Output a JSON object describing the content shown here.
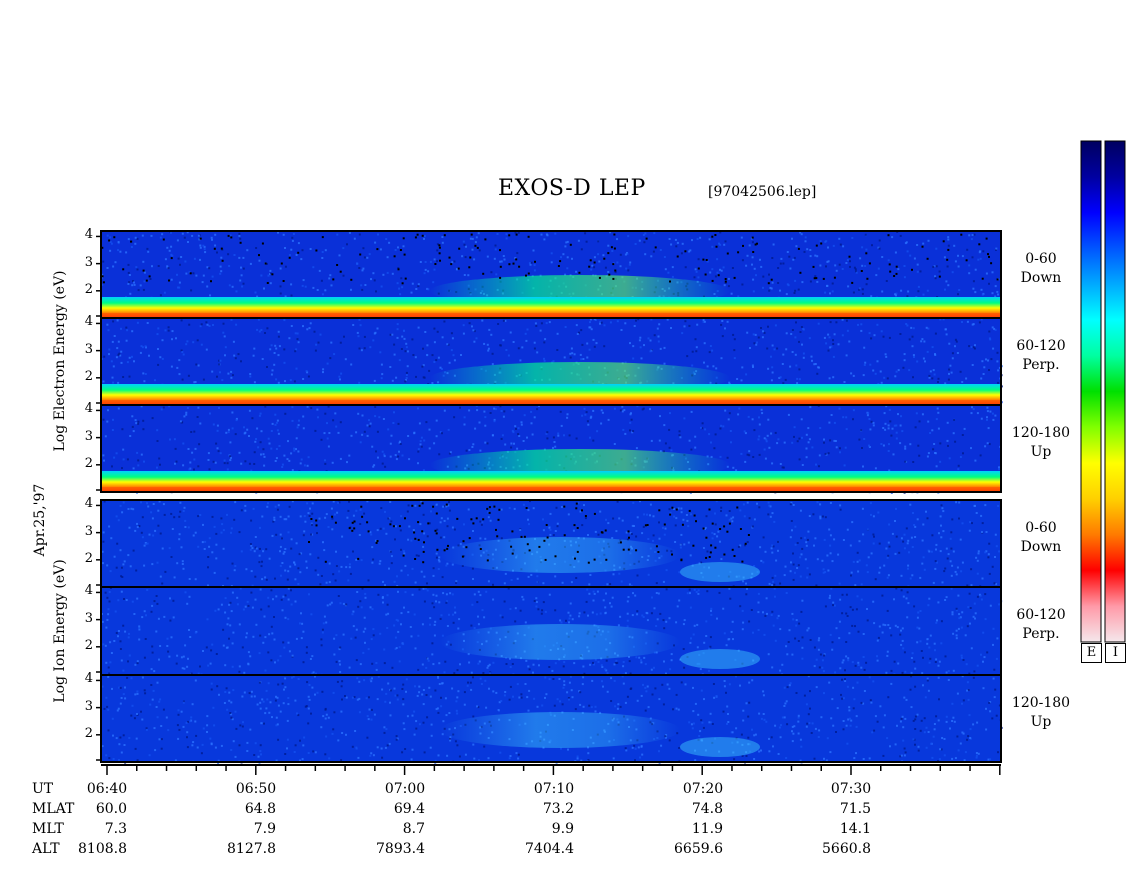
{
  "header": {
    "title": "EXOS-D LEP",
    "filename": "[97042506.lep]"
  },
  "date_label": "Apr.25,'97",
  "electron_axis": {
    "words": [
      "Log",
      "Electron",
      "Energy",
      "(eV)"
    ]
  },
  "ion_axis": {
    "words": [
      "Log",
      "Ion",
      "Energy",
      "(eV)"
    ]
  },
  "colorbar": {
    "labels": [
      "E",
      "I"
    ],
    "colors": [
      "#f5e8ec",
      "#ff9aa8",
      "#ff0000",
      "#ff7a00",
      "#ffd000",
      "#ffff00",
      "#80ff00",
      "#00e000",
      "#00ffa0",
      "#00ffff",
      "#00aaff",
      "#0055ff",
      "#0000ff",
      "#0000a0",
      "#000060"
    ]
  },
  "orbit_table": {
    "rows": [
      {
        "label": "UT",
        "values": [
          "06:40",
          "06:50",
          "07:00",
          "07:10",
          "07:20",
          "07:30"
        ]
      },
      {
        "label": "MLAT",
        "values": [
          "60.0",
          "64.8",
          "69.4",
          "73.2",
          "74.8",
          "71.5"
        ]
      },
      {
        "label": "MLT",
        "values": [
          "7.3",
          "7.9",
          "8.7",
          "9.9",
          "11.9",
          "14.1"
        ]
      },
      {
        "label": "ALT",
        "values": [
          "8108.8",
          "8127.8",
          "7893.4",
          "7404.4",
          "6659.6",
          "5660.8"
        ]
      }
    ]
  },
  "chart_data": {
    "type": "heatmap",
    "title": "EXOS-D LEP",
    "x": {
      "label": "UT",
      "range": [
        "06:40",
        "07:40"
      ],
      "ticks": [
        "06:40",
        "06:50",
        "07:00",
        "07:10",
        "07:20",
        "07:30"
      ]
    },
    "y": {
      "label": "Log Energy (eV)",
      "range": [
        1,
        4.2
      ],
      "ticks": [
        2,
        3,
        4
      ]
    },
    "groups": [
      {
        "name": "Electron",
        "panels": [
          {
            "pitch": "0-60",
            "direction": "Down",
            "yticks": [
              "2",
              "3",
              "4"
            ]
          },
          {
            "pitch": "60-120",
            "direction": "Perp.",
            "yticks": [
              "2",
              "3",
              "4"
            ]
          },
          {
            "pitch": "120-180",
            "direction": "Up",
            "yticks": [
              "2",
              "3",
              "4"
            ]
          }
        ]
      },
      {
        "name": "Ion",
        "panels": [
          {
            "pitch": "0-60",
            "direction": "Down",
            "yticks": [
              "2",
              "3",
              "4"
            ]
          },
          {
            "pitch": "60-120",
            "direction": "Perp.",
            "yticks": [
              "2",
              "3",
              "4"
            ]
          },
          {
            "pitch": "120-180",
            "direction": "Up",
            "yticks": [
              "2",
              "3",
              "4"
            ]
          }
        ]
      }
    ]
  }
}
